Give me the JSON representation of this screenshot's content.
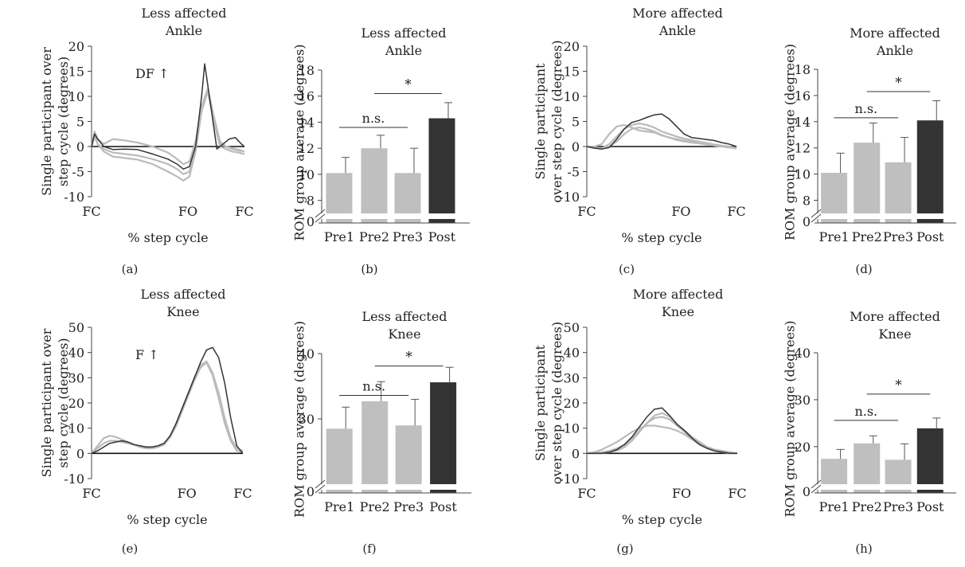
{
  "chart_data": [
    {
      "panel_label": "(a)",
      "type": "line",
      "title": [
        "Less affected",
        "Ankle"
      ],
      "ylabel": [
        "Single participant over",
        "step cycle (degrees)"
      ],
      "xlabel": "% step cycle",
      "yticks": [
        -10,
        -5,
        0,
        5,
        10,
        15,
        20
      ],
      "ylim": [
        -10,
        20
      ],
      "xticklabels": [
        "FC",
        "FO",
        "FC"
      ],
      "annotation": "DF ↑",
      "series": [
        {
          "color": "#333333",
          "x": [
            0,
            2,
            4,
            8,
            14,
            22,
            30,
            40,
            50,
            56,
            60,
            64,
            68,
            72,
            74,
            78,
            82,
            86,
            90,
            94,
            98,
            100
          ],
          "y": [
            0,
            2.5,
            1.5,
            0,
            -0.6,
            -0.5,
            -0.6,
            -1.5,
            -2.5,
            -3.5,
            -4.5,
            -4,
            0,
            10,
            16.5,
            8,
            -0.5,
            0.5,
            1.5,
            1.8,
            0.5,
            0
          ]
        },
        {
          "color": "#bbbbbb",
          "x": [
            0,
            2,
            4,
            8,
            14,
            22,
            30,
            40,
            50,
            56,
            60,
            64,
            68,
            72,
            76,
            80,
            84,
            88,
            92,
            96,
            100
          ],
          "y": [
            0,
            3,
            1.5,
            0.5,
            1.5,
            1.2,
            0.8,
            0,
            -1.2,
            -2.5,
            -3.5,
            -3,
            1,
            8,
            11.5,
            6,
            1,
            0,
            -0.5,
            -0.8,
            -1
          ]
        },
        {
          "color": "#bbbbbb",
          "x": [
            0,
            2,
            4,
            8,
            14,
            22,
            30,
            40,
            50,
            56,
            60,
            64,
            68,
            72,
            76,
            80,
            84,
            88,
            92,
            96,
            100
          ],
          "y": [
            0,
            2.5,
            0.5,
            -1,
            -2,
            -2.3,
            -2.6,
            -3.5,
            -5,
            -6,
            -6.8,
            -6,
            -1,
            7,
            11,
            5,
            0,
            -0.5,
            -1,
            -1.2,
            -1.5
          ]
        },
        {
          "color": "#bbbbbb",
          "x": [
            0,
            2,
            4,
            8,
            14,
            22,
            30,
            40,
            50,
            56,
            60,
            64,
            68,
            72,
            76,
            80,
            84,
            88,
            92,
            96,
            100
          ],
          "y": [
            0,
            2,
            0.5,
            -0.5,
            -1.2,
            -1.5,
            -1.8,
            -2.5,
            -3.5,
            -4.5,
            -5.5,
            -5,
            0,
            8,
            11,
            6,
            0.5,
            0,
            -0.3,
            -0.6,
            -1
          ]
        }
      ]
    },
    {
      "panel_label": "(b)",
      "type": "bar",
      "title": [
        "Less affected",
        "Ankle"
      ],
      "ylabel": [
        "ROM group average (degrees)"
      ],
      "categories": [
        "Pre1",
        "Pre2",
        "Pre3",
        "Post"
      ],
      "values": [
        10.1,
        12.0,
        10.1,
        14.3
      ],
      "errors": [
        1.2,
        1.0,
        1.9,
        1.2
      ],
      "bar_colors": [
        "#bfbfbf",
        "#bfbfbf",
        "#bfbfbf",
        "#333333"
      ],
      "yticks": [
        8,
        10,
        12,
        14,
        16,
        18
      ],
      "ylim": [
        7,
        18
      ],
      "broken_axis_zero": "0",
      "brackets": [
        {
          "from": 0,
          "to": 2,
          "y": 13.6,
          "label": "n.s."
        },
        {
          "from": 1,
          "to": 3,
          "y": 16.2,
          "label": "*"
        }
      ]
    },
    {
      "panel_label": "(c)",
      "type": "line",
      "title": [
        "More affected",
        "Ankle"
      ],
      "ylabel": [
        "Single participant",
        "over step cycle (degrees)"
      ],
      "xlabel": "% step cycle",
      "yticks": [
        -10,
        -5,
        0,
        5,
        10,
        15,
        20
      ],
      "ylim": [
        -10,
        20
      ],
      "xticklabels": [
        "FC",
        "FO",
        "FC"
      ],
      "series": [
        {
          "color": "#333333",
          "x": [
            0,
            5,
            10,
            15,
            20,
            25,
            30,
            35,
            40,
            45,
            50,
            55,
            60,
            65,
            70,
            75,
            80,
            85,
            90,
            95,
            100
          ],
          "y": [
            0,
            -0.3,
            -0.5,
            -0.2,
            1.5,
            3.5,
            4.8,
            5.2,
            5.8,
            6.3,
            6.5,
            5.5,
            4,
            2.5,
            1.8,
            1.6,
            1.4,
            1.2,
            0.8,
            0.5,
            0
          ]
        },
        {
          "color": "#bbbbbb",
          "x": [
            0,
            5,
            10,
            15,
            20,
            25,
            30,
            35,
            40,
            45,
            50,
            55,
            60,
            65,
            70,
            75,
            80,
            85,
            90,
            95,
            100
          ],
          "y": [
            0,
            0,
            0.5,
            2.5,
            4,
            4.3,
            3.8,
            3.2,
            3,
            2.8,
            2.2,
            1.8,
            1.5,
            1.2,
            1,
            0.8,
            0.5,
            0.2,
            0,
            -0.2,
            -0.3
          ]
        },
        {
          "color": "#bbbbbb",
          "x": [
            0,
            5,
            10,
            15,
            20,
            25,
            30,
            35,
            40,
            45,
            50,
            55,
            60,
            65,
            70,
            75,
            80,
            85,
            90,
            95,
            100
          ],
          "y": [
            0,
            -0.3,
            -0.4,
            0.5,
            2,
            3.5,
            4.3,
            4.6,
            4.3,
            3.8,
            3,
            2.5,
            2,
            1.6,
            1.3,
            1,
            0.7,
            0.4,
            0.2,
            0,
            -0.3
          ]
        },
        {
          "color": "#bbbbbb",
          "x": [
            0,
            5,
            10,
            15,
            20,
            25,
            30,
            35,
            40,
            45,
            50,
            55,
            60,
            65,
            70,
            75,
            80,
            85,
            90,
            95,
            100
          ],
          "y": [
            0,
            -0.2,
            -0.3,
            0,
            1,
            2.5,
            3.5,
            3.8,
            3.5,
            3,
            2.3,
            1.8,
            1.3,
            1,
            0.8,
            0.6,
            0.4,
            0.2,
            0,
            -0.1,
            -0.4
          ]
        }
      ]
    },
    {
      "panel_label": "(d)",
      "type": "bar",
      "title": [
        "More affected",
        "Ankle"
      ],
      "ylabel": [
        "ROM group average (degrees)"
      ],
      "categories": [
        "Pre1",
        "Pre2",
        "Pre3",
        "Post"
      ],
      "values": [
        10.1,
        12.4,
        10.9,
        14.1
      ],
      "errors": [
        1.5,
        1.5,
        1.9,
        1.5
      ],
      "bar_colors": [
        "#bfbfbf",
        "#bfbfbf",
        "#bfbfbf",
        "#333333"
      ],
      "yticks": [
        8,
        10,
        12,
        14,
        16,
        18
      ],
      "ylim": [
        7,
        18
      ],
      "broken_axis_zero": "0",
      "brackets": [
        {
          "from": 0,
          "to": 2,
          "y": 14.3,
          "label": "n.s."
        },
        {
          "from": 1,
          "to": 3,
          "y": 16.3,
          "label": "*"
        }
      ]
    },
    {
      "panel_label": "(e)",
      "type": "line",
      "title": [
        "Less affected",
        "Knee"
      ],
      "ylabel": [
        "Single participant over",
        "step cycle (degrees)"
      ],
      "xlabel": "% step cycle",
      "yticks": [
        -10,
        0,
        10,
        20,
        30,
        40,
        50
      ],
      "ylim": [
        -10,
        50
      ],
      "xticklabels": [
        "FC",
        "FO",
        "FC"
      ],
      "annotation": "F ↑",
      "series": [
        {
          "color": "#333333",
          "x": [
            0,
            4,
            8,
            12,
            16,
            20,
            24,
            28,
            32,
            36,
            40,
            44,
            48,
            52,
            56,
            60,
            64,
            68,
            72,
            76,
            80,
            84,
            88,
            92,
            96,
            100
          ],
          "y": [
            0,
            1,
            2.5,
            4,
            4.5,
            5,
            4.5,
            3.5,
            3,
            2.5,
            2.5,
            3,
            4,
            7,
            12,
            18,
            24,
            30,
            36,
            41,
            42,
            38,
            28,
            14,
            3,
            0
          ]
        },
        {
          "color": "#bbbbbb",
          "x": [
            0,
            4,
            8,
            12,
            16,
            20,
            24,
            28,
            32,
            36,
            40,
            44,
            48,
            52,
            56,
            60,
            64,
            68,
            72,
            76,
            80,
            84,
            88,
            92,
            96,
            100
          ],
          "y": [
            0,
            3,
            6,
            7,
            6.5,
            5.5,
            4.5,
            3.5,
            3,
            2.5,
            2.5,
            3,
            4,
            7,
            12,
            18,
            24,
            30,
            35,
            36.5,
            32,
            24,
            14,
            6,
            2,
            1
          ]
        },
        {
          "color": "#bbbbbb",
          "x": [
            0,
            4,
            8,
            12,
            16,
            20,
            24,
            28,
            32,
            36,
            40,
            44,
            48,
            52,
            56,
            60,
            64,
            68,
            72,
            76,
            80,
            84,
            88,
            92,
            96,
            100
          ],
          "y": [
            0,
            2,
            4,
            5,
            5,
            4.5,
            4,
            3.5,
            2.5,
            2,
            2,
            2.5,
            3.5,
            6.5,
            11,
            17,
            23,
            29,
            34,
            36,
            31,
            22,
            12,
            5,
            1,
            0.5
          ]
        }
      ]
    },
    {
      "panel_label": "(f)",
      "type": "bar",
      "title": [
        "Less affected",
        "Knee"
      ],
      "ylabel": [
        "ROM group average (degrees)"
      ],
      "categories": [
        "Pre1",
        "Pre2",
        "Pre3",
        "Post"
      ],
      "values": [
        28.5,
        32.7,
        29.0,
        35.6
      ],
      "errors": [
        3.3,
        3.0,
        4.0,
        2.3
      ],
      "bar_colors": [
        "#bfbfbf",
        "#bfbfbf",
        "#bfbfbf",
        "#333333"
      ],
      "yticks": [
        30,
        40
      ],
      "ylim": [
        20,
        40
      ],
      "broken_axis_zero": "0",
      "brackets": [
        {
          "from": 0,
          "to": 2,
          "y": 33.6,
          "label": "n.s."
        },
        {
          "from": 1,
          "to": 3,
          "y": 38.1,
          "label": "*"
        }
      ]
    },
    {
      "panel_label": "(g)",
      "type": "line",
      "title": [
        "More affected",
        "Knee"
      ],
      "ylabel": [
        "Single participant",
        "over step cycle (degrees)"
      ],
      "xlabel": "% step cycle",
      "yticks": [
        -10,
        0,
        10,
        20,
        30,
        40,
        50
      ],
      "ylim": [
        -10,
        50
      ],
      "xticklabels": [
        "FC",
        "FO",
        "FC"
      ],
      "series": [
        {
          "color": "#333333",
          "x": [
            0,
            5,
            10,
            15,
            20,
            25,
            30,
            35,
            40,
            45,
            50,
            55,
            60,
            65,
            70,
            75,
            80,
            85,
            90,
            95,
            100
          ],
          "y": [
            0,
            0,
            0,
            0.5,
            1.5,
            3.5,
            6.5,
            10.5,
            14.5,
            17.5,
            18,
            15,
            11.5,
            9,
            6,
            3.5,
            2,
            1,
            0.5,
            0,
            0
          ]
        },
        {
          "color": "#bbbbbb",
          "x": [
            0,
            5,
            10,
            15,
            20,
            25,
            30,
            35,
            40,
            45,
            50,
            55,
            60,
            65,
            70,
            75,
            80,
            85,
            90,
            95,
            100
          ],
          "y": [
            0,
            0.5,
            1.5,
            3,
            4.5,
            6.5,
            8.5,
            10,
            11,
            11,
            10.5,
            10,
            9,
            7.5,
            5.5,
            3.5,
            2,
            1,
            0.5,
            0,
            0
          ]
        },
        {
          "color": "#bbbbbb",
          "x": [
            0,
            5,
            10,
            15,
            20,
            25,
            30,
            35,
            40,
            45,
            50,
            55,
            60,
            65,
            70,
            75,
            80,
            85,
            90,
            95,
            100
          ],
          "y": [
            0,
            0,
            0.5,
            1,
            2,
            3.5,
            6,
            9,
            12,
            14,
            14.5,
            13.5,
            11,
            8.5,
            6,
            4,
            2.5,
            1.5,
            1,
            0.5,
            0
          ]
        },
        {
          "color": "#bbbbbb",
          "x": [
            0,
            5,
            10,
            15,
            20,
            25,
            30,
            35,
            40,
            45,
            50,
            55,
            60,
            65,
            70,
            75,
            80,
            85,
            90,
            95,
            100
          ],
          "y": [
            0,
            0,
            0,
            0.5,
            1,
            2.5,
            5,
            8.5,
            12,
            15,
            16,
            14.5,
            11.5,
            9,
            6.5,
            4.5,
            2.5,
            1.5,
            1,
            0.5,
            0
          ]
        }
      ]
    },
    {
      "panel_label": "(h)",
      "type": "bar",
      "title": [
        "More affected",
        "Knee"
      ],
      "ylabel": [
        "ROM group average (degrees)"
      ],
      "categories": [
        "Pre1",
        "Pre2",
        "Pre3",
        "Post"
      ],
      "values": [
        17.4,
        20.7,
        17.2,
        23.9
      ],
      "errors": [
        2.0,
        1.6,
        3.4,
        2.2
      ],
      "bar_colors": [
        "#bfbfbf",
        "#bfbfbf",
        "#bfbfbf",
        "#333333"
      ],
      "yticks": [
        20,
        30,
        40
      ],
      "ylim": [
        12,
        40
      ],
      "broken_axis_zero": "0",
      "brackets": [
        {
          "from": 0,
          "to": 2,
          "y": 25.6,
          "label": "n.s."
        },
        {
          "from": 1,
          "to": 3,
          "y": 31.2,
          "label": "*"
        }
      ]
    }
  ]
}
